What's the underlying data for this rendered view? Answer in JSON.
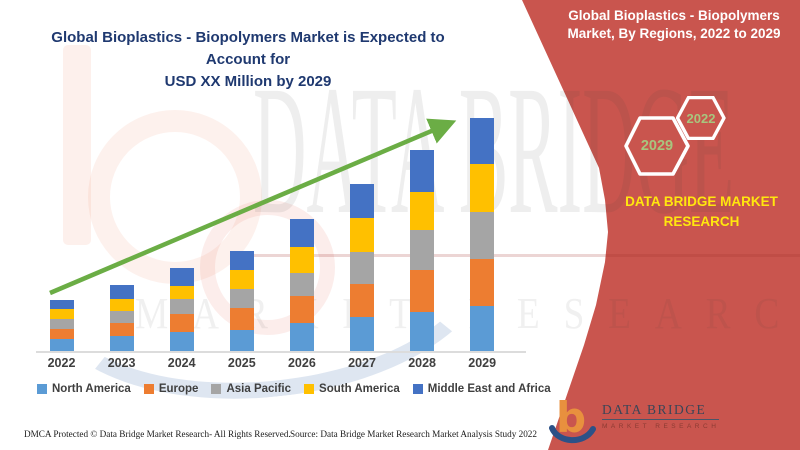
{
  "header": {
    "left_title_line1": "Global Bioplastics - Biopolymers Market is Expected to Account for",
    "left_title_line2": "USD XX Million by 2029",
    "left_title_color": "#1F3970"
  },
  "chart_data": {
    "type": "bar",
    "stacked": true,
    "title": "Global Bioplastics - Biopolymers Market is Expected to Account for USD XX Million by 2029",
    "value_axis_note": "USD Million — actual values masked as 'XX' in source; series values are relative estimates read from bar heights",
    "categories": [
      "2022",
      "2023",
      "2024",
      "2025",
      "2026",
      "2027",
      "2028",
      "2029"
    ],
    "series": [
      {
        "name": "North America",
        "color": "#5B9BD5",
        "values": [
          12,
          15.5,
          19.5,
          21.5,
          28,
          34,
          39.5,
          45
        ]
      },
      {
        "name": "Europe",
        "color": "#ED7D31",
        "values": [
          10,
          12.5,
          17.5,
          22,
          27.5,
          33.5,
          41.5,
          47.5
        ]
      },
      {
        "name": "Asia Pacific",
        "color": "#A5A5A5",
        "values": [
          10,
          12.5,
          15,
          18.5,
          23,
          31.5,
          40,
          46.5
        ]
      },
      {
        "name": "South America",
        "color": "#FFC000",
        "values": [
          10.5,
          11.5,
          13,
          19,
          26,
          34.5,
          38.5,
          48.5
        ]
      },
      {
        "name": "Middle East and Africa",
        "color": "#4472C4",
        "values": [
          9,
          14.5,
          18.5,
          19.5,
          27.5,
          34,
          41.5,
          45.5
        ]
      }
    ],
    "totals": [
      51.5,
      66.5,
      83.5,
      100.5,
      132,
      167.5,
      201,
      233
    ],
    "legend_position": "bottom",
    "gridlines": false,
    "y_axis_labels_visible": false,
    "trend_arrow": {
      "present": true,
      "color": "#6BAD45",
      "direction": "up-right"
    }
  },
  "right_panel": {
    "background_color": "#C9554E",
    "title_line1": "Global Bioplastics - Biopolymers",
    "title_line2": "Market, By Regions, 2022 to 2029",
    "badge_back_year": "2029",
    "badge_front_year": "2022",
    "badge_text_color": "#A8C57E",
    "brand_line1": "DATA BRIDGE MARKET",
    "brand_line2": "RESEARCH",
    "brand_color": "#FFE70E",
    "logo_title": "DATA BRIDGE",
    "logo_subtitle": "MARKET RESEARCH"
  },
  "footer": {
    "left": "DMCA Protected © Data Bridge Market Research- All Rights Reserved.",
    "right": "Source: Data Bridge Market Research Market Analysis Study 2022"
  },
  "watermark": {
    "line1": "DATA BRIDGE",
    "line2": "MARKET RESEARCH"
  }
}
